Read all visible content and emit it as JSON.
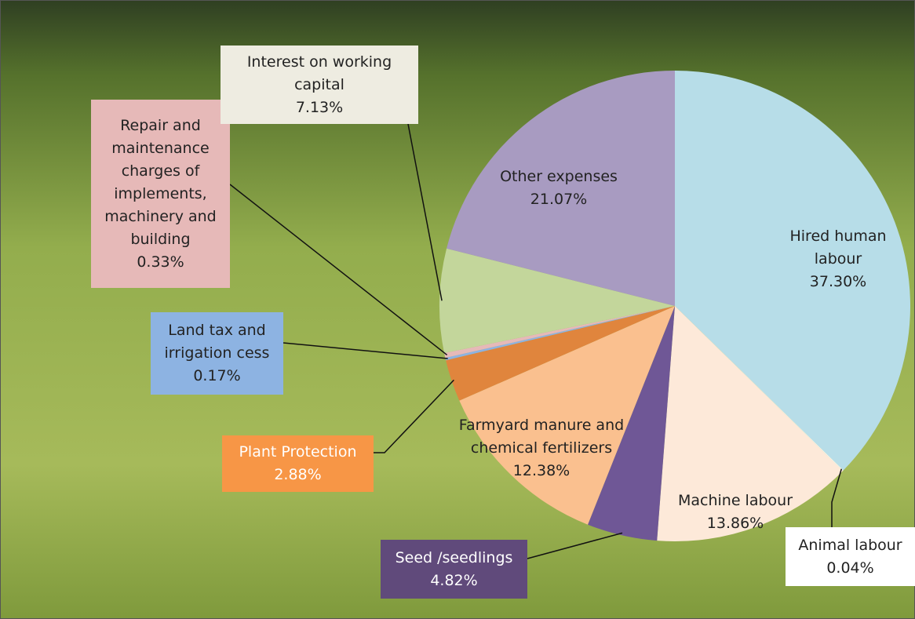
{
  "chart_data": {
    "type": "pie",
    "categories": [
      "Hired human labour",
      "Animal labour",
      "Machine labour",
      "Seed /seedlings",
      "Farmyard manure and chemical fertilizers",
      "Plant Protection",
      "Land tax and irrigation cess",
      "Repair and maintenance charges of implements, machinery and building",
      "Interest on working capital",
      "Other expenses"
    ],
    "values": [
      37.3,
      0.04,
      13.86,
      4.82,
      12.38,
      2.88,
      0.17,
      0.33,
      7.13,
      21.07
    ],
    "value_labels": [
      "37.30%",
      "0.04%",
      "13.86%",
      "4.82%",
      "12.38%",
      "2.88%",
      "0.17%",
      "0.33%",
      "7.13%",
      "21.07%"
    ],
    "colors": [
      "#b7dde8",
      "#ffffff",
      "#fde9d9",
      "#6f5796",
      "#fac08f",
      "#e0853d",
      "#8db3e2",
      "#e6b9b8",
      "#c3d69b",
      "#a89bc1"
    ]
  }
}
